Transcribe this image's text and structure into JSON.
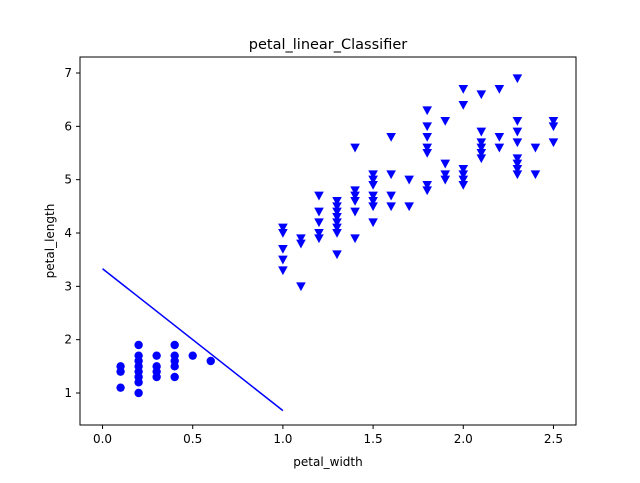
{
  "chart_data": {
    "type": "scatter",
    "title": "petal_linear_Classifier",
    "xlabel": "petal_width",
    "ylabel": "petal_length",
    "xlim": [
      -0.125,
      2.625
    ],
    "ylim": [
      0.4,
      7.3
    ],
    "xticks": [
      0.0,
      0.5,
      1.0,
      1.5,
      2.0,
      2.5
    ],
    "xtick_labels": [
      "0.0",
      "0.5",
      "1.0",
      "1.5",
      "2.0",
      "2.5"
    ],
    "yticks": [
      1,
      2,
      3,
      4,
      5,
      6,
      7
    ],
    "ytick_labels": [
      "1",
      "2",
      "3",
      "4",
      "5",
      "6",
      "7"
    ],
    "color": "#0000ff",
    "series": [
      {
        "marker": "circle",
        "points": [
          [
            0.1,
            1.1
          ],
          [
            0.1,
            1.4
          ],
          [
            0.1,
            1.5
          ],
          [
            0.2,
            1.0
          ],
          [
            0.2,
            1.2
          ],
          [
            0.2,
            1.3
          ],
          [
            0.2,
            1.4
          ],
          [
            0.2,
            1.5
          ],
          [
            0.2,
            1.6
          ],
          [
            0.2,
            1.7
          ],
          [
            0.2,
            1.9
          ],
          [
            0.3,
            1.3
          ],
          [
            0.3,
            1.4
          ],
          [
            0.3,
            1.5
          ],
          [
            0.3,
            1.7
          ],
          [
            0.4,
            1.3
          ],
          [
            0.4,
            1.5
          ],
          [
            0.4,
            1.6
          ],
          [
            0.4,
            1.7
          ],
          [
            0.4,
            1.9
          ],
          [
            0.5,
            1.7
          ],
          [
            0.6,
            1.6
          ]
        ]
      },
      {
        "marker": "triangle-down",
        "points": [
          [
            1.0,
            3.3
          ],
          [
            1.0,
            3.5
          ],
          [
            1.0,
            3.7
          ],
          [
            1.0,
            4.0
          ],
          [
            1.0,
            4.1
          ],
          [
            1.1,
            3.0
          ],
          [
            1.1,
            3.8
          ],
          [
            1.1,
            3.9
          ],
          [
            1.2,
            3.9
          ],
          [
            1.2,
            4.0
          ],
          [
            1.2,
            4.2
          ],
          [
            1.2,
            4.4
          ],
          [
            1.2,
            4.7
          ],
          [
            1.3,
            3.6
          ],
          [
            1.3,
            4.0
          ],
          [
            1.3,
            4.1
          ],
          [
            1.3,
            4.2
          ],
          [
            1.3,
            4.3
          ],
          [
            1.3,
            4.4
          ],
          [
            1.3,
            4.5
          ],
          [
            1.3,
            4.6
          ],
          [
            1.4,
            3.9
          ],
          [
            1.4,
            4.4
          ],
          [
            1.4,
            4.6
          ],
          [
            1.4,
            4.7
          ],
          [
            1.4,
            4.8
          ],
          [
            1.4,
            5.6
          ],
          [
            1.5,
            4.2
          ],
          [
            1.5,
            4.5
          ],
          [
            1.5,
            4.6
          ],
          [
            1.5,
            4.7
          ],
          [
            1.5,
            4.9
          ],
          [
            1.5,
            5.0
          ],
          [
            1.5,
            5.1
          ],
          [
            1.6,
            4.5
          ],
          [
            1.6,
            4.7
          ],
          [
            1.6,
            5.1
          ],
          [
            1.6,
            5.8
          ],
          [
            1.7,
            4.5
          ],
          [
            1.7,
            5.0
          ],
          [
            1.8,
            4.8
          ],
          [
            1.8,
            4.9
          ],
          [
            1.8,
            5.5
          ],
          [
            1.8,
            5.6
          ],
          [
            1.8,
            5.8
          ],
          [
            1.8,
            6.0
          ],
          [
            1.8,
            6.3
          ],
          [
            1.9,
            5.0
          ],
          [
            1.9,
            5.1
          ],
          [
            1.9,
            5.3
          ],
          [
            1.9,
            6.1
          ],
          [
            2.0,
            4.9
          ],
          [
            2.0,
            5.0
          ],
          [
            2.0,
            5.1
          ],
          [
            2.0,
            5.2
          ],
          [
            2.0,
            6.4
          ],
          [
            2.0,
            6.7
          ],
          [
            2.1,
            5.4
          ],
          [
            2.1,
            5.5
          ],
          [
            2.1,
            5.6
          ],
          [
            2.1,
            5.7
          ],
          [
            2.1,
            5.9
          ],
          [
            2.1,
            6.6
          ],
          [
            2.2,
            5.6
          ],
          [
            2.2,
            5.8
          ],
          [
            2.2,
            6.7
          ],
          [
            2.3,
            5.1
          ],
          [
            2.3,
            5.2
          ],
          [
            2.3,
            5.3
          ],
          [
            2.3,
            5.4
          ],
          [
            2.3,
            5.7
          ],
          [
            2.3,
            5.9
          ],
          [
            2.3,
            6.1
          ],
          [
            2.3,
            6.9
          ],
          [
            2.4,
            5.1
          ],
          [
            2.4,
            5.6
          ],
          [
            2.5,
            5.7
          ],
          [
            2.5,
            6.0
          ],
          [
            2.5,
            6.1
          ]
        ]
      },
      {
        "marker": "line",
        "points": [
          [
            0.0,
            3.33
          ],
          [
            1.0,
            0.67
          ]
        ]
      }
    ]
  }
}
